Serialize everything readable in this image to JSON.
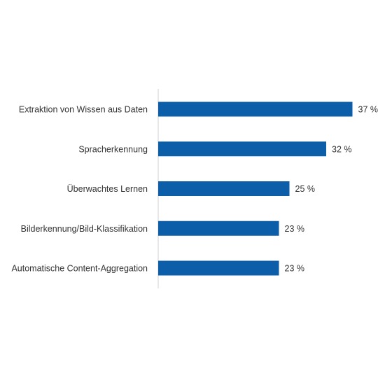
{
  "chart_data": {
    "type": "bar",
    "orientation": "horizontal",
    "categories": [
      "Extraktion von Wissen aus Daten",
      "Spracherkennung",
      "Überwachtes Lernen",
      "Bilderkennung/Bild-Klassifikation",
      "Automatische Content-Aggregation"
    ],
    "values": [
      37,
      32,
      25,
      23,
      23
    ],
    "value_labels": [
      "37 %",
      "32 %",
      "25 %",
      "23 %",
      "23 %"
    ],
    "unit": "%",
    "xlim": [
      0,
      40
    ],
    "grid": false,
    "legend": "none",
    "bar_color": "#0c5ea8",
    "axis_color": "#d0d0d0"
  }
}
